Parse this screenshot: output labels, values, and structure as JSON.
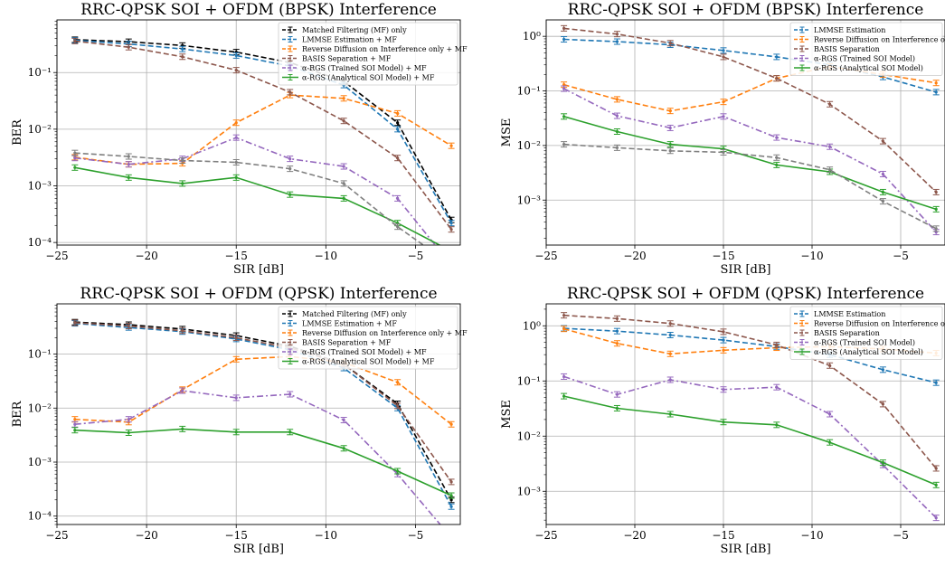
{
  "chart_data": [
    {
      "type": "line",
      "title": "RRC-QPSK SOI + OFDM (BPSK) Interference",
      "xlabel": "SIR [dB]",
      "ylabel": "BER",
      "yscale": "log",
      "xlim": [
        -25,
        -2.5
      ],
      "ylim": [
        9e-05,
        0.85
      ],
      "xticks": [
        -25,
        -20,
        -15,
        -10,
        -5
      ],
      "xtick_labels": [
        "−25",
        "−20",
        "−15",
        "−10",
        "−5"
      ],
      "yticks": [
        0.0001,
        0.001,
        0.01,
        0.1
      ],
      "ytick_labels": [
        "10⁻⁴",
        "10⁻³",
        "10⁻²",
        "10⁻¹"
      ],
      "grid": true,
      "legend_position": "top-right",
      "x": [
        -24,
        -21,
        -18,
        -15,
        -12,
        -9,
        -6,
        -3
      ],
      "series": [
        {
          "name": "Matched Filtering (MF) only",
          "color": "#000000",
          "dash": "dashed",
          "in_legend": true,
          "values": [
            0.38,
            0.35,
            0.3,
            0.23,
            0.15,
            0.07,
            0.013,
            0.00025
          ]
        },
        {
          "name": "LMMSE Estimation + MF",
          "color": "#1f77b4",
          "dash": "dashed",
          "in_legend": true,
          "values": [
            0.37,
            0.32,
            0.26,
            0.2,
            0.13,
            0.06,
            0.01,
            0.00022
          ]
        },
        {
          "name": "Reverse Diffusion on Interference only + MF",
          "color": "#ff7f0e",
          "dash": "dashed",
          "in_legend": true,
          "values": [
            0.0032,
            0.0024,
            0.0025,
            0.013,
            0.04,
            0.035,
            0.019,
            0.0051
          ]
        },
        {
          "name": "BASIS Separation + MF",
          "color": "#8c564b",
          "dash": "dashed",
          "in_legend": true,
          "values": [
            0.36,
            0.28,
            0.19,
            0.11,
            0.045,
            0.014,
            0.0031,
            0.00017
          ]
        },
        {
          "name": "α-RGS (Trained SOI Model) + MF",
          "color": "#9467bd",
          "dash": "dashdot",
          "in_legend": true,
          "values": [
            0.0031,
            0.0024,
            0.003,
            0.0071,
            0.003,
            0.0022,
            0.0006,
            4e-05
          ]
        },
        {
          "name": "α-RGS (Analytical SOI Model) + MF",
          "color": "#2ca02c",
          "dash": "solid",
          "in_legend": true,
          "values": [
            0.0021,
            0.0014,
            0.0011,
            0.0014,
            0.0007,
            0.0006,
            0.00022,
            7e-05
          ]
        },
        {
          "name": "",
          "color": "#7f7f7f",
          "dash": "dashed",
          "in_legend": false,
          "values": [
            0.0038,
            0.0033,
            0.0028,
            0.0026,
            0.002,
            0.0011,
            0.00019,
            4e-05
          ]
        }
      ]
    },
    {
      "type": "line",
      "title": "RRC-QPSK SOI + OFDM (BPSK) Interference",
      "xlabel": "SIR [dB]",
      "ylabel": "MSE",
      "yscale": "log",
      "xlim": [
        -25,
        -2.5
      ],
      "ylim": [
        0.00015,
        2.0
      ],
      "xticks": [
        -25,
        -20,
        -15,
        -10,
        -5
      ],
      "xtick_labels": [
        "−25",
        "−20",
        "−15",
        "−10",
        "−5"
      ],
      "yticks": [
        0.001,
        0.01,
        0.1,
        1
      ],
      "ytick_labels": [
        "10⁻³",
        "10⁻²",
        "10⁻¹",
        "10⁰"
      ],
      "grid": true,
      "legend_position": "top-right",
      "x": [
        -24,
        -21,
        -18,
        -15,
        -12,
        -9,
        -6,
        -3
      ],
      "series": [
        {
          "name": "LMMSE Estimation",
          "color": "#1f77b4",
          "dash": "dashed",
          "in_legend": true,
          "values": [
            0.88,
            0.8,
            0.7,
            0.55,
            0.42,
            0.3,
            0.18,
            0.095
          ]
        },
        {
          "name": "Reverse Diffusion on Interference only",
          "color": "#ff7f0e",
          "dash": "dashed",
          "in_legend": true,
          "values": [
            0.13,
            0.07,
            0.043,
            0.063,
            0.17,
            0.28,
            0.2,
            0.14
          ]
        },
        {
          "name": "BASIS Separation",
          "color": "#8c564b",
          "dash": "dashed",
          "in_legend": true,
          "values": [
            1.4,
            1.1,
            0.75,
            0.42,
            0.17,
            0.057,
            0.012,
            0.0014
          ]
        },
        {
          "name": "α-RGS (Trained SOI Model)",
          "color": "#9467bd",
          "dash": "dashdot",
          "in_legend": true,
          "values": [
            0.11,
            0.035,
            0.021,
            0.034,
            0.014,
            0.0095,
            0.003,
            0.00026
          ]
        },
        {
          "name": "α-RGS (Analytical SOI Model)",
          "color": "#2ca02c",
          "dash": "solid",
          "in_legend": true,
          "values": [
            0.034,
            0.018,
            0.0105,
            0.0087,
            0.0044,
            0.0033,
            0.0014,
            0.00068
          ]
        },
        {
          "name": "",
          "color": "#7f7f7f",
          "dash": "dashed",
          "in_legend": false,
          "values": [
            0.0105,
            0.0091,
            0.008,
            0.0075,
            0.006,
            0.0036,
            0.00095,
            0.0003
          ]
        }
      ]
    },
    {
      "type": "line",
      "title": "RRC-QPSK SOI + OFDM (QPSK) Interference",
      "xlabel": "SIR [dB]",
      "ylabel": "BER",
      "yscale": "log",
      "xlim": [
        -25,
        -2.5
      ],
      "ylim": [
        7e-05,
        0.85
      ],
      "xticks": [
        -25,
        -20,
        -15,
        -10,
        -5
      ],
      "xtick_labels": [
        "−25",
        "−20",
        "−15",
        "−10",
        "−5"
      ],
      "yticks": [
        0.0001,
        0.001,
        0.01,
        0.1
      ],
      "ytick_labels": [
        "10⁻⁴",
        "10⁻³",
        "10⁻²",
        "10⁻¹"
      ],
      "grid": true,
      "legend_position": "top-right",
      "x": [
        -24,
        -21,
        -18,
        -15,
        -12,
        -9,
        -6,
        -3
      ],
      "series": [
        {
          "name": "Matched Filtering (MF) only",
          "color": "#000000",
          "dash": "dashed",
          "in_legend": true,
          "values": [
            0.39,
            0.35,
            0.29,
            0.22,
            0.14,
            0.065,
            0.012,
            0.0002
          ]
        },
        {
          "name": "LMMSE Estimation + MF",
          "color": "#1f77b4",
          "dash": "dashed",
          "in_legend": true,
          "values": [
            0.37,
            0.31,
            0.26,
            0.19,
            0.12,
            0.055,
            0.01,
            0.00015
          ]
        },
        {
          "name": "Reverse Diffusion on Interference only + MF",
          "color": "#ff7f0e",
          "dash": "dashed",
          "in_legend": true,
          "values": [
            0.0062,
            0.0055,
            0.022,
            0.08,
            0.09,
            0.07,
            0.03,
            0.005
          ]
        },
        {
          "name": "BASIS Separation + MF",
          "color": "#8c564b",
          "dash": "dashed",
          "in_legend": true,
          "values": [
            0.38,
            0.33,
            0.27,
            0.2,
            0.13,
            0.065,
            0.011,
            0.00043
          ]
        },
        {
          "name": "α-RGS (Trained SOI Model) + MF",
          "color": "#9467bd",
          "dash": "dashdot",
          "in_legend": true,
          "values": [
            0.005,
            0.0062,
            0.021,
            0.0155,
            0.018,
            0.006,
            0.0006,
            4e-05
          ]
        },
        {
          "name": "α-RGS (Analytical SOI Model) + MF",
          "color": "#2ca02c",
          "dash": "solid",
          "in_legend": true,
          "values": [
            0.0039,
            0.0035,
            0.0041,
            0.0036,
            0.0036,
            0.0018,
            0.00068,
            0.00024
          ]
        }
      ]
    },
    {
      "type": "line",
      "title": "RRC-QPSK SOI + OFDM (QPSK) Interference",
      "xlabel": "SIR [dB]",
      "ylabel": "MSE",
      "yscale": "log",
      "xlim": [
        -25,
        -2.5
      ],
      "ylim": [
        0.00025,
        2.5
      ],
      "xticks": [
        -25,
        -20,
        -15,
        -10,
        -5
      ],
      "xtick_labels": [
        "−25",
        "−20",
        "−15",
        "−10",
        "−5"
      ],
      "yticks": [
        0.001,
        0.01,
        0.1,
        1
      ],
      "ytick_labels": [
        "10⁻³",
        "10⁻²",
        "10⁻¹",
        "10⁰"
      ],
      "grid": true,
      "legend_position": "top-right",
      "x": [
        -24,
        -21,
        -18,
        -15,
        -12,
        -9,
        -6,
        -3
      ],
      "series": [
        {
          "name": "LMMSE Estimation",
          "color": "#1f77b4",
          "dash": "dashed",
          "in_legend": true,
          "values": [
            0.9,
            0.8,
            0.68,
            0.55,
            0.42,
            0.3,
            0.16,
            0.093
          ]
        },
        {
          "name": "Reverse Diffusion on Interference only",
          "color": "#ff7f0e",
          "dash": "dashed",
          "in_legend": true,
          "values": [
            0.88,
            0.48,
            0.31,
            0.36,
            0.4,
            0.42,
            0.38,
            0.32
          ]
        },
        {
          "name": "BASIS Separation",
          "color": "#8c564b",
          "dash": "dashed",
          "in_legend": true,
          "values": [
            1.55,
            1.35,
            1.1,
            0.78,
            0.45,
            0.19,
            0.038,
            0.0026
          ]
        },
        {
          "name": "α-RGS (Trained SOI Model)",
          "color": "#9467bd",
          "dash": "dashdot",
          "in_legend": true,
          "values": [
            0.12,
            0.057,
            0.105,
            0.07,
            0.077,
            0.025,
            0.003,
            0.00033
          ]
        },
        {
          "name": "α-RGS (Analytical SOI Model)",
          "color": "#2ca02c",
          "dash": "solid",
          "in_legend": true,
          "values": [
            0.053,
            0.032,
            0.025,
            0.018,
            0.016,
            0.0077,
            0.0033,
            0.0013
          ]
        }
      ]
    }
  ]
}
